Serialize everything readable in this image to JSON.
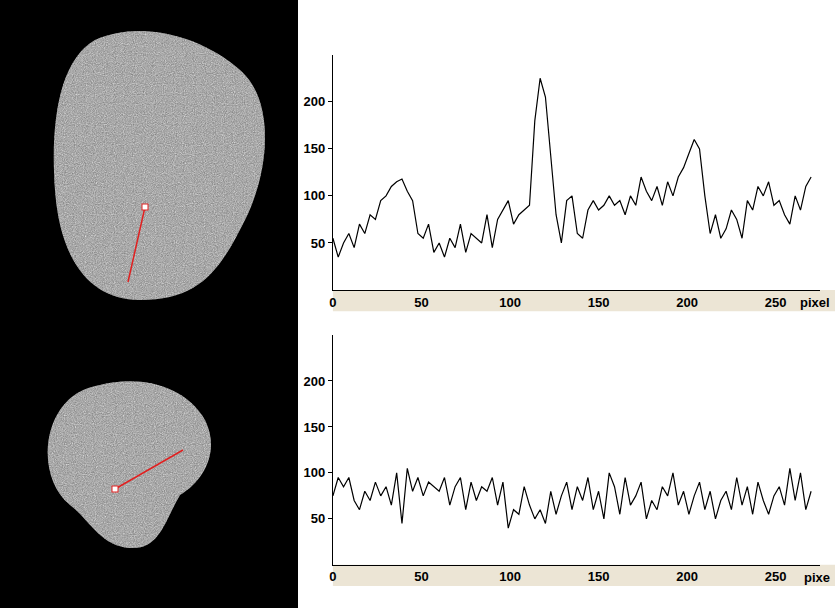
{
  "chart_data": [
    {
      "type": "line",
      "xlabel": "pixel",
      "color": "#000000",
      "grid": false,
      "x": [
        0,
        3,
        6,
        9,
        12,
        15,
        18,
        21,
        24,
        27,
        30,
        33,
        36,
        39,
        42,
        45,
        48,
        51,
        54,
        57,
        60,
        63,
        66,
        69,
        72,
        75,
        78,
        81,
        84,
        87,
        90,
        93,
        96,
        99,
        102,
        105,
        108,
        111,
        114,
        117,
        120,
        123,
        126,
        129,
        132,
        135,
        138,
        141,
        144,
        147,
        150,
        153,
        156,
        159,
        162,
        165,
        168,
        171,
        174,
        177,
        180,
        183,
        186,
        189,
        192,
        195,
        198,
        201,
        204,
        207,
        210,
        213,
        216,
        219,
        222,
        225,
        228,
        231,
        234,
        237,
        240,
        243,
        246,
        249,
        252,
        255,
        258,
        261,
        264,
        267,
        270
      ],
      "values": [
        55,
        35,
        50,
        60,
        45,
        70,
        60,
        80,
        75,
        95,
        100,
        110,
        115,
        118,
        105,
        95,
        60,
        55,
        70,
        40,
        50,
        35,
        55,
        45,
        70,
        40,
        60,
        55,
        50,
        80,
        45,
        75,
        85,
        95,
        70,
        80,
        85,
        90,
        180,
        225,
        205,
        140,
        80,
        50,
        95,
        100,
        60,
        55,
        85,
        95,
        85,
        90,
        100,
        90,
        95,
        80,
        100,
        90,
        120,
        105,
        95,
        110,
        90,
        115,
        100,
        120,
        130,
        145,
        160,
        150,
        100,
        60,
        80,
        55,
        65,
        85,
        75,
        55,
        95,
        85,
        110,
        100,
        115,
        90,
        95,
        80,
        70,
        100,
        85,
        110,
        120
      ],
      "xlim": [
        0,
        275
      ],
      "xticks": [
        0,
        50,
        100,
        150,
        200,
        250
      ],
      "ylim": [
        0,
        250
      ],
      "yticks": [
        50,
        100,
        150,
        200
      ]
    },
    {
      "type": "line",
      "xlabel": "pixe",
      "color": "#000000",
      "grid": false,
      "x": [
        0,
        3,
        6,
        9,
        12,
        15,
        18,
        21,
        24,
        27,
        30,
        33,
        36,
        39,
        42,
        45,
        48,
        51,
        54,
        57,
        60,
        63,
        66,
        69,
        72,
        75,
        78,
        81,
        84,
        87,
        90,
        93,
        96,
        99,
        102,
        105,
        108,
        111,
        114,
        117,
        120,
        123,
        126,
        129,
        132,
        135,
        138,
        141,
        144,
        147,
        150,
        153,
        156,
        159,
        162,
        165,
        168,
        171,
        174,
        177,
        180,
        183,
        186,
        189,
        192,
        195,
        198,
        201,
        204,
        207,
        210,
        213,
        216,
        219,
        222,
        225,
        228,
        231,
        234,
        237,
        240,
        243,
        246,
        249,
        252,
        255,
        258,
        261,
        264,
        267,
        270
      ],
      "values": [
        75,
        95,
        85,
        95,
        70,
        60,
        80,
        70,
        90,
        75,
        85,
        65,
        100,
        45,
        105,
        80,
        95,
        75,
        90,
        85,
        80,
        95,
        65,
        85,
        95,
        60,
        90,
        70,
        85,
        80,
        95,
        65,
        90,
        40,
        60,
        55,
        85,
        65,
        50,
        60,
        45,
        80,
        55,
        75,
        90,
        60,
        85,
        70,
        95,
        60,
        80,
        50,
        100,
        85,
        55,
        95,
        65,
        75,
        90,
        50,
        70,
        60,
        85,
        75,
        100,
        65,
        80,
        55,
        75,
        90,
        60,
        80,
        50,
        70,
        80,
        60,
        95,
        65,
        85,
        55,
        90,
        70,
        55,
        75,
        85,
        65,
        105,
        70,
        100,
        60,
        80
      ],
      "xlim": [
        0,
        275
      ],
      "xticks": [
        0,
        50,
        100,
        150,
        200,
        250
      ],
      "ylim": [
        0,
        250
      ],
      "yticks": [
        50,
        100,
        150,
        200
      ]
    }
  ]
}
